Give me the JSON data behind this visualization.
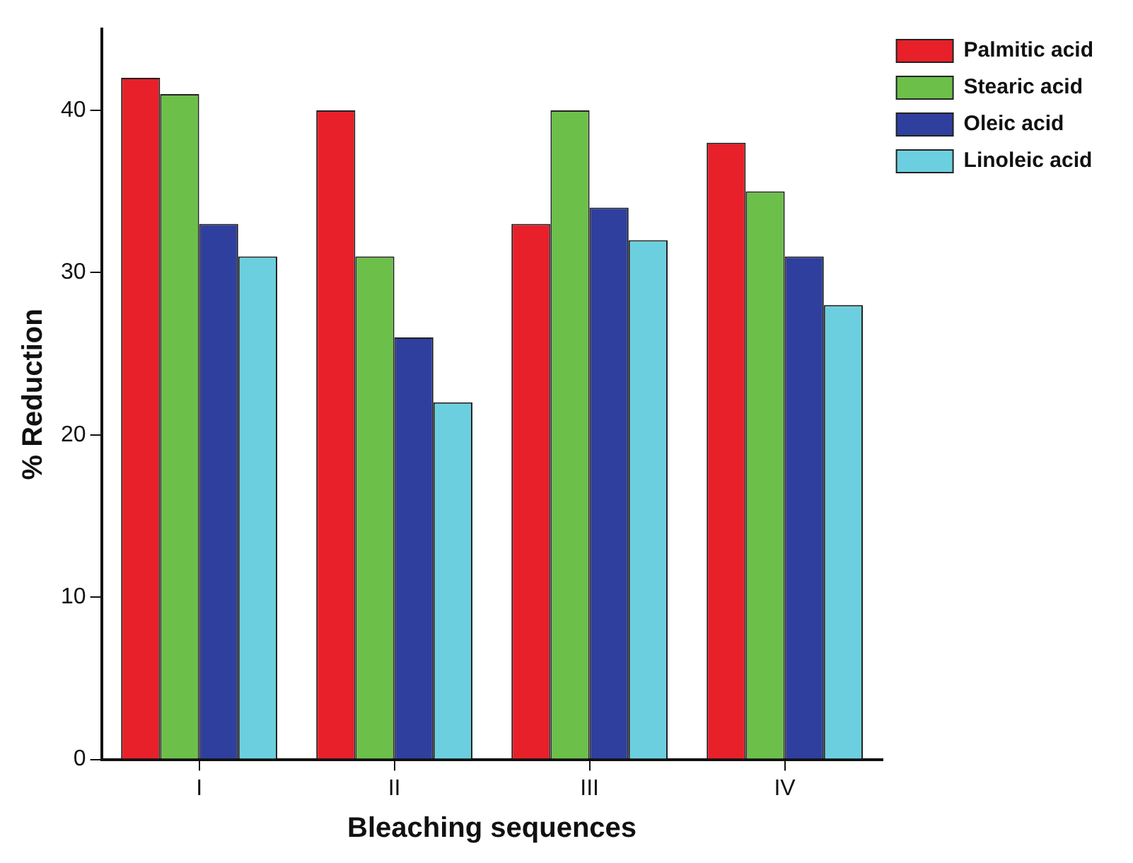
{
  "chart_data": {
    "type": "bar",
    "xlabel": "Bleaching sequences",
    "ylabel": "% Reduction",
    "categories": [
      "I",
      "II",
      "III",
      "IV"
    ],
    "series": [
      {
        "name": "Palmitic acid",
        "color": "#e8202a",
        "values": [
          42,
          40,
          33,
          38
        ]
      },
      {
        "name": "Stearic acid",
        "color": "#6cc04a",
        "values": [
          41,
          31,
          40,
          35
        ]
      },
      {
        "name": "Oleic acid",
        "color": "#2e3f9e",
        "values": [
          33,
          26,
          34,
          31
        ]
      },
      {
        "name": "Linoleic acid",
        "color": "#6ccfdf",
        "values": [
          31,
          22,
          32,
          28
        ]
      }
    ],
    "ylim": [
      0,
      45
    ],
    "yticks": [
      0,
      10,
      20,
      30,
      40
    ],
    "grid": false,
    "legend": "top right"
  }
}
